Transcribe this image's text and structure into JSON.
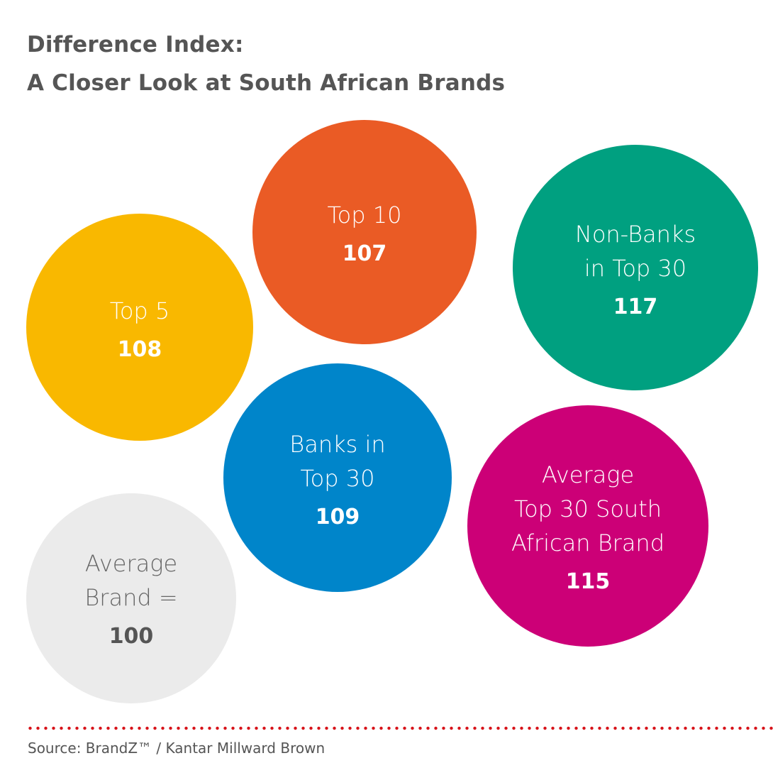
{
  "title": {
    "line1": "Difference Index:",
    "line2": "A Closer Look at South African Brands"
  },
  "chart_data": {
    "type": "bubble",
    "title": "Difference Index: A Closer Look at South African Brands",
    "series": [
      {
        "name": "Top 5",
        "label_lines": [
          "Top 5"
        ],
        "value": 108,
        "value_text": "108",
        "color": "#F9B800",
        "text_color": "#ffffff",
        "value_color": "#ffffff"
      },
      {
        "name": "Top 10",
        "label_lines": [
          "Top 10"
        ],
        "value": 107,
        "value_text": "107",
        "color": "#EA5B25",
        "text_color": "#ffffff",
        "value_color": "#ffffff"
      },
      {
        "name": "Non-Banks in Top 30",
        "label_lines": [
          "Non-Banks",
          "in Top 30"
        ],
        "value": 117,
        "value_text": "117",
        "color": "#00A080",
        "text_color": "#ffffff",
        "value_color": "#ffffff"
      },
      {
        "name": "Banks in Top 30",
        "label_lines": [
          "Banks in",
          "Top 30"
        ],
        "value": 109,
        "value_text": "109",
        "color": "#0085CA",
        "text_color": "#ffffff",
        "value_color": "#ffffff"
      },
      {
        "name": "Average Top 30 South African Brand",
        "label_lines": [
          "Average",
          "Top 30 South",
          "African Brand"
        ],
        "value": 115,
        "value_text": "115",
        "color": "#CC0077",
        "text_color": "#ffffff",
        "value_color": "#ffffff"
      },
      {
        "name": "Average Brand",
        "label_lines": [
          "Average",
          "Brand ="
        ],
        "value": 100,
        "value_text": "100",
        "color": "#EBEBEB",
        "text_color": "#666666",
        "value_color": "#555555"
      }
    ]
  },
  "source": "Source: BrandZ™ / Kantar Millward Brown",
  "colors": {
    "divider": "#D7141A",
    "title": "#555555"
  }
}
